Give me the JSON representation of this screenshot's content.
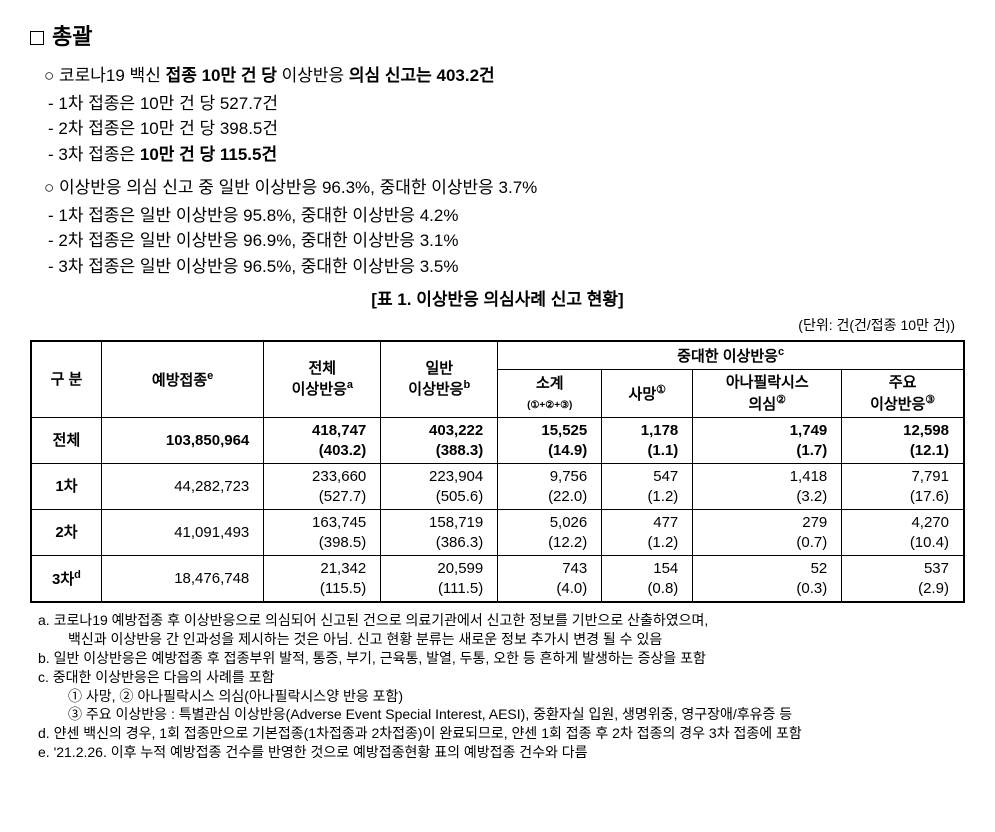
{
  "title": "총괄",
  "summary1": {
    "main": "코로나19 백신 <b>접종 10만 건 당</b> 이상반응 <b>의심 신고는 403.2건</b>",
    "line1": "1차 접종은 10만 건 당 527.7건",
    "line2": "2차 접종은 10만 건 당 398.5건",
    "line3": "3차 접종은 <b>10만 건 당 115.5건</b>"
  },
  "summary2": {
    "main": "이상반응 의심 신고 중 일반 이상반응 96.3%, 중대한 이상반응 3.7%",
    "line1": "1차 접종은 일반 이상반응 95.8%, 중대한 이상반응 4.2%",
    "line2": "2차 접종은 일반 이상반응 96.9%, 중대한 이상반응 3.1%",
    "line3": "3차 접종은 일반 이상반응 96.5%, 중대한 이상반응 3.5%"
  },
  "table": {
    "title": "[표 1. 이상반응 의심사례 신고 현황]",
    "unit": "(단위: 건(건/접종 10만 건))",
    "headers": {
      "col1": "구 분",
      "col2": "예방접종",
      "col2_sup": "e",
      "col3": "전체\n이상반응",
      "col3_sup": "a",
      "col4": "일반\n이상반응",
      "col4_sup": "b",
      "group": "중대한 이상반응",
      "group_sup": "c",
      "sub1": "소계",
      "sub1_note": "(①+②+③)",
      "sub2": "사망",
      "sub2_sup": "①",
      "sub3": "아나필락시스\n의심",
      "sub3_sup": "②",
      "sub4": "주요\n이상반응",
      "sub4_sup": "③"
    },
    "rows": [
      {
        "label": "전체",
        "vacc": "103,850,964",
        "c1": "418,747",
        "c1b": "(403.2)",
        "c2": "403,222",
        "c2b": "(388.3)",
        "c3": "15,525",
        "c3b": "(14.9)",
        "c4": "1,178",
        "c4b": "(1.1)",
        "c5": "1,749",
        "c5b": "(1.7)",
        "c6": "12,598",
        "c6b": "(12.1)",
        "bold": true
      },
      {
        "label": "1차",
        "vacc": "44,282,723",
        "c1": "233,660",
        "c1b": "(527.7)",
        "c2": "223,904",
        "c2b": "(505.6)",
        "c3": "9,756",
        "c3b": "(22.0)",
        "c4": "547",
        "c4b": "(1.2)",
        "c5": "1,418",
        "c5b": "(3.2)",
        "c6": "7,791",
        "c6b": "(17.6)"
      },
      {
        "label": "2차",
        "vacc": "41,091,493",
        "c1": "163,745",
        "c1b": "(398.5)",
        "c2": "158,719",
        "c2b": "(386.3)",
        "c3": "5,026",
        "c3b": "(12.2)",
        "c4": "477",
        "c4b": "(1.2)",
        "c5": "279",
        "c5b": "(0.7)",
        "c6": "4,270",
        "c6b": "(10.4)"
      },
      {
        "label": "3차",
        "label_sup": "d",
        "vacc": "18,476,748",
        "c1": "21,342",
        "c1b": "(115.5)",
        "c2": "20,599",
        "c2b": "(111.5)",
        "c3": "743",
        "c3b": "(4.0)",
        "c4": "154",
        "c4b": "(0.8)",
        "c5": "52",
        "c5b": "(0.3)",
        "c6": "537",
        "c6b": "(2.9)"
      }
    ]
  },
  "footnotes": {
    "a1": "a. 코로나19 예방접종 후 이상반응으로 의심되어 신고된 건으로 의료기관에서 신고한 정보를 기반으로 산출하였으며,",
    "a2": "백신과 이상반응 간 인과성을 제시하는 것은 아님. 신고 현황 분류는 새로운 정보 추가시 변경 될 수 있음",
    "b": "b. 일반 이상반응은 예방접종 후 접종부위 발적, 통증, 부기, 근육통, 발열, 두통, 오한 등 흔하게 발생하는 증상을 포함",
    "c": "c. 중대한 이상반응은 다음의 사례를 포함",
    "c_sub1": "① 사망,  ② 아나필락시스 의심(아나필락시스양 반응 포함)",
    "c_sub2": "③ 주요 이상반응 : 특별관심 이상반응(Adverse Event Special Interest, AESI), 중환자실 입원, 생명위중, 영구장애/후유증 등",
    "d": "d. 얀센 백신의 경우, 1회 접종만으로 기본접종(1차접종과 2차접종)이 완료되므로, 얀센 1회 접종 후 2차 접종의 경우 3차 접종에 포함",
    "e": "e. '21.2.26. 이후 누적 예방접종 건수를 반영한 것으로 예방접종현황 표의 예방접종 건수와 다름"
  }
}
